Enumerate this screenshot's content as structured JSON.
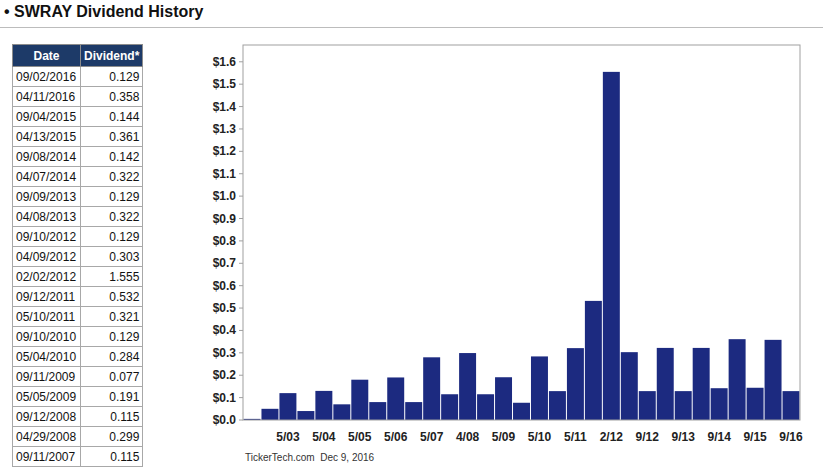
{
  "title": "• SWRAY Dividend History",
  "table": {
    "header": [
      "Date",
      "Dividend*"
    ],
    "rows": [
      [
        "09/02/2016",
        "0.129"
      ],
      [
        "04/11/2016",
        "0.358"
      ],
      [
        "09/04/2015",
        "0.144"
      ],
      [
        "04/13/2015",
        "0.361"
      ],
      [
        "09/08/2014",
        "0.142"
      ],
      [
        "04/07/2014",
        "0.322"
      ],
      [
        "09/09/2013",
        "0.129"
      ],
      [
        "04/08/2013",
        "0.322"
      ],
      [
        "09/10/2012",
        "0.129"
      ],
      [
        "04/09/2012",
        "0.303"
      ],
      [
        "02/02/2012",
        "1.555"
      ],
      [
        "09/12/2011",
        "0.532"
      ],
      [
        "05/10/2011",
        "0.321"
      ],
      [
        "09/10/2010",
        "0.129"
      ],
      [
        "05/04/2010",
        "0.284"
      ],
      [
        "09/11/2009",
        "0.077"
      ],
      [
        "05/05/2009",
        "0.191"
      ],
      [
        "09/12/2008",
        "0.115"
      ],
      [
        "04/29/2008",
        "0.299"
      ],
      [
        "09/11/2007",
        "0.115"
      ]
    ]
  },
  "footer": "TickerTech.com  Dec 9, 2016",
  "chart_data": {
    "type": "bar",
    "categories": [
      null,
      null,
      "5/03",
      null,
      "5/04",
      null,
      "5/05",
      null,
      "5/06",
      null,
      "5/07",
      null,
      "4/08",
      null,
      "5/09",
      null,
      "5/10",
      null,
      "5/11",
      null,
      "2/12",
      null,
      "9/12",
      null,
      "9/13",
      null,
      "9/14",
      null,
      "9/15",
      null,
      "9/16"
    ],
    "values": [
      0.005,
      0.05,
      0.12,
      0.04,
      0.13,
      0.07,
      0.18,
      0.08,
      0.19,
      0.08,
      0.28,
      0.115,
      0.299,
      0.115,
      0.191,
      0.077,
      0.284,
      0.129,
      0.321,
      0.532,
      1.555,
      0.303,
      0.129,
      0.322,
      0.129,
      0.322,
      0.142,
      0.361,
      0.144,
      0.358,
      0.129
    ],
    "color": "#1c2a80",
    "ylim": [
      0,
      1.675
    ],
    "yticks": [
      {
        "value": 0,
        "label": "$0.0"
      },
      {
        "value": 0.1,
        "label": "$0.1"
      },
      {
        "value": 0.2,
        "label": "$0.2"
      },
      {
        "value": 0.3,
        "label": "$0.3"
      },
      {
        "value": 0.4,
        "label": "$0.4"
      },
      {
        "value": 0.5,
        "label": "$0.5"
      },
      {
        "value": 0.6,
        "label": "$0.6"
      },
      {
        "value": 0.7,
        "label": "$0.7"
      },
      {
        "value": 0.8,
        "label": "$0.8"
      },
      {
        "value": 0.9,
        "label": "$0.9"
      },
      {
        "value": 1.0,
        "label": "$1.0"
      },
      {
        "value": 1.1,
        "label": "$1.1"
      },
      {
        "value": 1.2,
        "label": "$1.2"
      },
      {
        "value": 1.3,
        "label": "$1.3"
      },
      {
        "value": 1.4,
        "label": "$1.4"
      },
      {
        "value": 1.5,
        "label": "$1.5"
      },
      {
        "value": 1.6,
        "label": "$1.6"
      }
    ],
    "grid": false
  }
}
